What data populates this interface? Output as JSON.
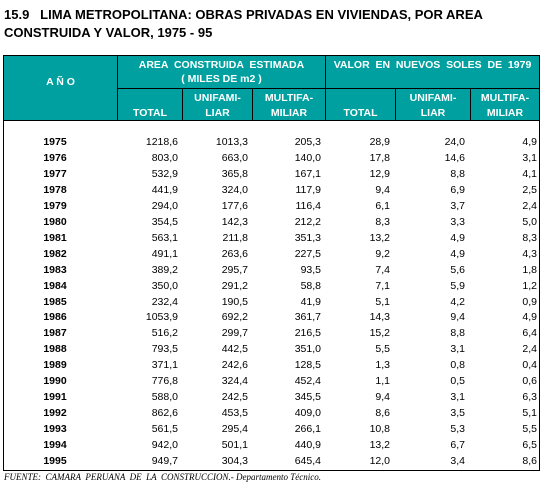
{
  "header": {
    "title": [
      "15.9   LIMA METROPOLITANA: OBRAS PRIVADAS EN VIVIENDAS, POR AREA",
      "CONSTRUIDA Y VALOR, 1975 - 95"
    ]
  },
  "table": {
    "year_header": "A Ñ O",
    "groups": [
      {
        "title": [
          "AREA  CONSTRUIDA  ESTIMADA",
          "( MILES DE m2 )"
        ]
      },
      {
        "title": [
          "VALOR  EN  NUEVOS  SOLES  DE  1979"
        ]
      }
    ],
    "columns": [
      [
        "TOTAL"
      ],
      [
        "UNIFAMI-",
        "LIAR"
      ],
      [
        "MULTIFA-",
        "MILIAR"
      ],
      [
        "TOTAL"
      ],
      [
        "UNIFAMI-",
        "LIAR"
      ],
      [
        "MULTIFA-",
        "MILIAR"
      ]
    ],
    "rows": [
      [
        "1975",
        "1218,6",
        "1013,3",
        "205,3",
        "28,9",
        "24,0",
        "4,9"
      ],
      [
        "1976",
        "803,0",
        "663,0",
        "140,0",
        "17,8",
        "14,6",
        "3,1"
      ],
      [
        "1977",
        "532,9",
        "365,8",
        "167,1",
        "12,9",
        "8,8",
        "4,1"
      ],
      [
        "1978",
        "441,9",
        "324,0",
        "117,9",
        "9,4",
        "6,9",
        "2,5"
      ],
      [
        "1979",
        "294,0",
        "177,6",
        "116,4",
        "6,1",
        "3,7",
        "2,4"
      ],
      [
        "1980",
        "354,5",
        "142,3",
        "212,2",
        "8,3",
        "3,3",
        "5,0"
      ],
      [
        "1981",
        "563,1",
        "211,8",
        "351,3",
        "13,2",
        "4,9",
        "8,3"
      ],
      [
        "1982",
        "491,1",
        "263,6",
        "227,5",
        "9,2",
        "4,9",
        "4,3"
      ],
      [
        "1983",
        "389,2",
        "295,7",
        "93,5",
        "7,4",
        "5,6",
        "1,8"
      ],
      [
        "1984",
        "350,0",
        "291,2",
        "58,8",
        "7,1",
        "5,9",
        "1,2"
      ],
      [
        "1985",
        "232,4",
        "190,5",
        "41,9",
        "5,1",
        "4,2",
        "0,9"
      ],
      [
        "1986",
        "1053,9",
        "692,2",
        "361,7",
        "14,3",
        "9,4",
        "4,9"
      ],
      [
        "1987",
        "516,2",
        "299,7",
        "216,5",
        "15,2",
        "8,8",
        "6,4"
      ],
      [
        "1988",
        "793,5",
        "442,5",
        "351,0",
        "5,5",
        "3,1",
        "2,4"
      ],
      [
        "1989",
        "371,1",
        "242,6",
        "128,5",
        "1,3",
        "0,8",
        "0,4"
      ],
      [
        "1990",
        "776,8",
        "324,4",
        "452,4",
        "1,1",
        "0,5",
        "0,6"
      ],
      [
        "1991",
        "588,0",
        "242,5",
        "345,5",
        "9,4",
        "3,1",
        "6,3"
      ],
      [
        "1992",
        "862,6",
        "453,5",
        "409,0",
        "8,6",
        "3,5",
        "5,1"
      ],
      [
        "1993",
        "561,5",
        "295,4",
        "266,1",
        "10,8",
        "5,3",
        "5,5"
      ],
      [
        "1994",
        "942,0",
        "501,1",
        "440,9",
        "13,2",
        "6,7",
        "6,5"
      ],
      [
        "1995",
        "949,7",
        "304,3",
        "645,4",
        "12,0",
        "3,4",
        "8,6"
      ]
    ]
  },
  "footer": {
    "source": "FUENTE:  CAMARA  PERUANA  DE  LA  CONSTRUCCION.- Departamento Técnico."
  }
}
